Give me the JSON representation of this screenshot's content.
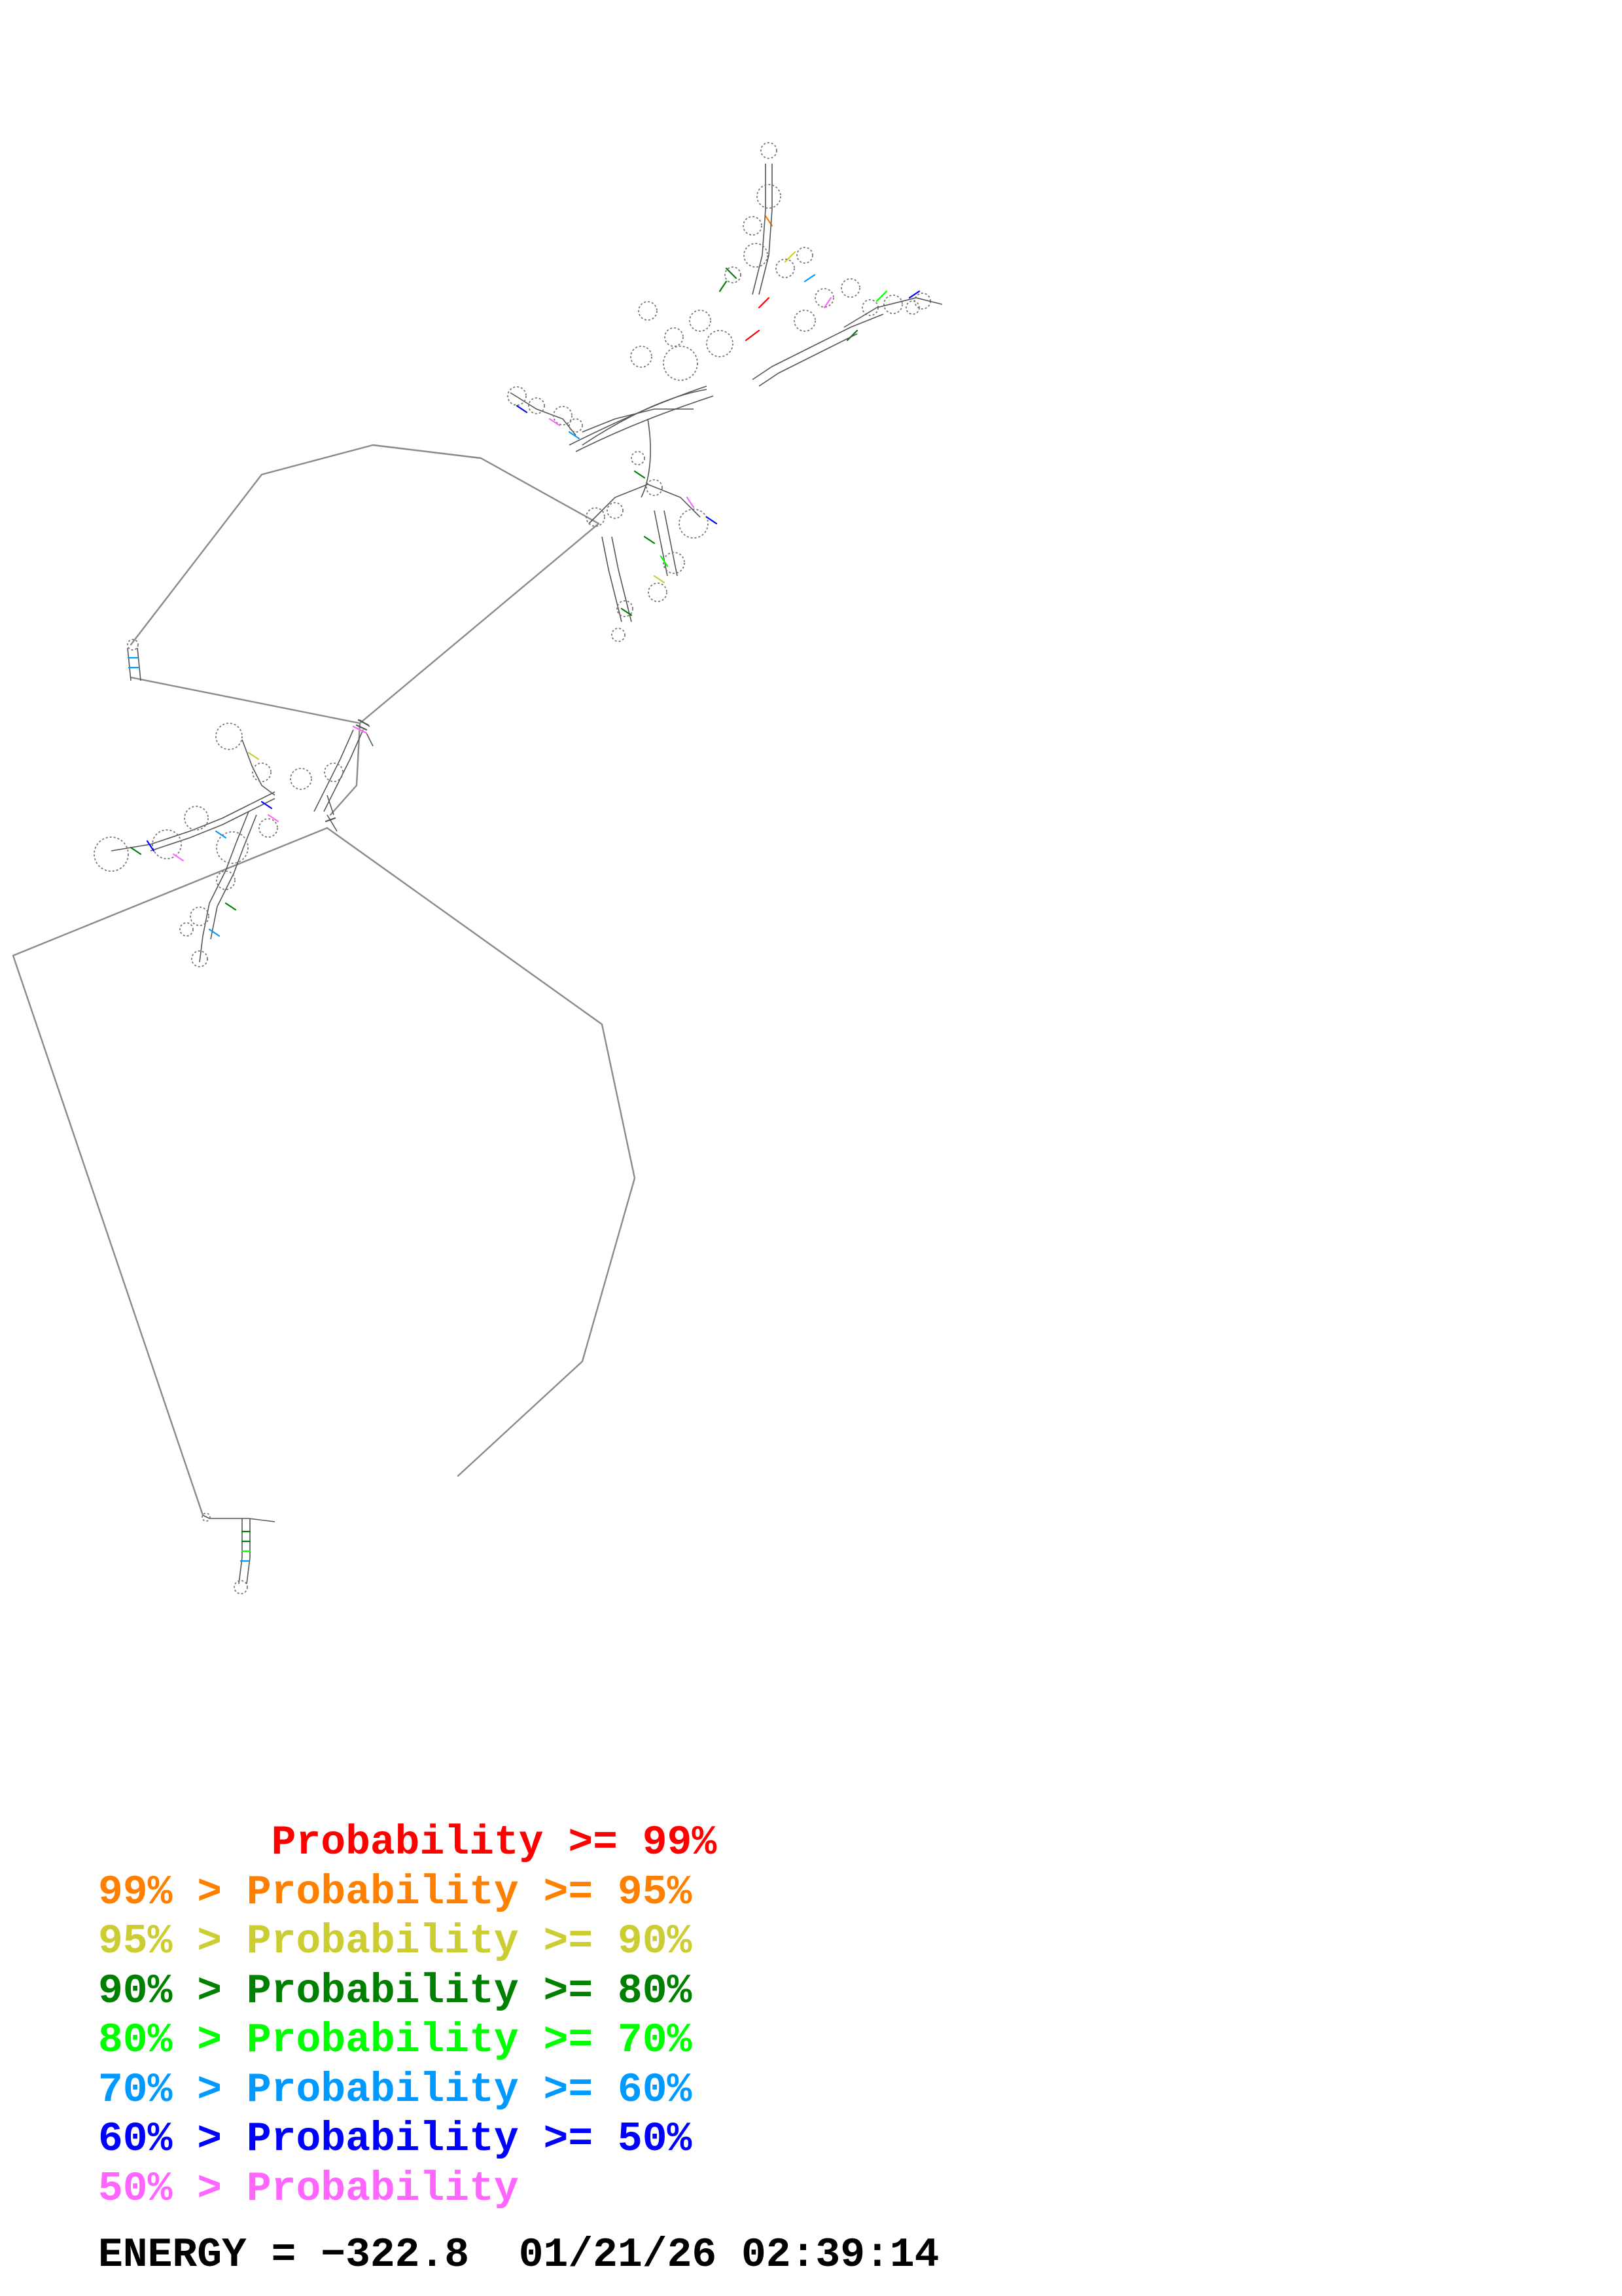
{
  "legend": [
    {
      "prefix": "       ",
      "text": "Probability >= 99%",
      "color": "#ff0000"
    },
    {
      "prefix": "99% > ",
      "text": "Probability >= 95%",
      "color": "#ff8000"
    },
    {
      "prefix": "95% > ",
      "text": "Probability >= 90%",
      "color": "#cccc33"
    },
    {
      "prefix": "90% > ",
      "text": "Probability >= 80%",
      "color": "#008000"
    },
    {
      "prefix": "80% > ",
      "text": "Probability >= 70%",
      "color": "#00ff00"
    },
    {
      "prefix": "70% > ",
      "text": "Probability >= 60%",
      "color": "#0099ff"
    },
    {
      "prefix": "60% > ",
      "text": "Probability >= 50%",
      "color": "#0000ff"
    },
    {
      "prefix": "50% > ",
      "text": "Probability",
      "color": "#ff66ff"
    }
  ],
  "energy_label": "ENERGY = ",
  "energy_value": "−322.8",
  "timestamp": "01/21/26 02:39:14",
  "colors": {
    "backbone": "#8a8a8a",
    "text": "#000000"
  }
}
